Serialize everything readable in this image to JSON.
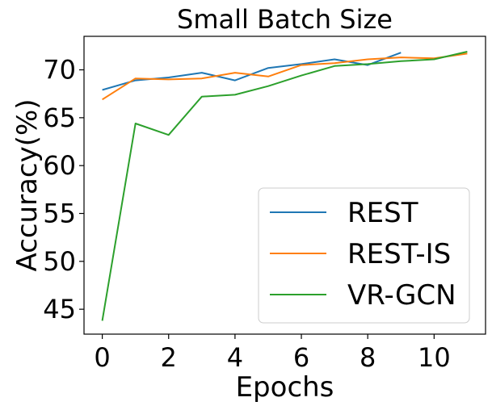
{
  "chart_data": {
    "type": "line",
    "title": "Small Batch Size",
    "xlabel": "Epochs",
    "ylabel": "Accuracy(%)",
    "xlim": [
      -0.55,
      11.55
    ],
    "ylim": [
      42.4,
      73.5
    ],
    "xticks": [
      0,
      2,
      4,
      6,
      8,
      10
    ],
    "yticks": [
      45,
      50,
      55,
      60,
      65,
      70
    ],
    "grid": false,
    "legend_position": "lower-right",
    "series": [
      {
        "name": "REST",
        "color": "#1f77b4",
        "x": [
          0,
          1,
          2,
          3,
          4,
          5,
          6,
          7,
          8,
          9
        ],
        "y": [
          67.9,
          68.9,
          69.2,
          69.7,
          68.9,
          70.2,
          70.6,
          71.1,
          70.5,
          71.8
        ]
      },
      {
        "name": "REST-IS",
        "color": "#ff7f0e",
        "x": [
          0,
          1,
          2,
          3,
          4,
          5,
          6,
          7,
          8,
          9,
          10,
          11
        ],
        "y": [
          66.9,
          69.1,
          69.0,
          69.1,
          69.7,
          69.3,
          70.5,
          70.7,
          71.1,
          71.3,
          71.2,
          71.7
        ]
      },
      {
        "name": "VR-GCN",
        "color": "#2ca02c",
        "x": [
          0,
          1,
          2,
          3,
          4,
          5,
          6,
          7,
          8,
          9,
          10,
          11
        ],
        "y": [
          43.8,
          64.4,
          63.2,
          67.2,
          67.4,
          68.3,
          69.4,
          70.4,
          70.6,
          70.9,
          71.1,
          71.9
        ]
      }
    ]
  }
}
